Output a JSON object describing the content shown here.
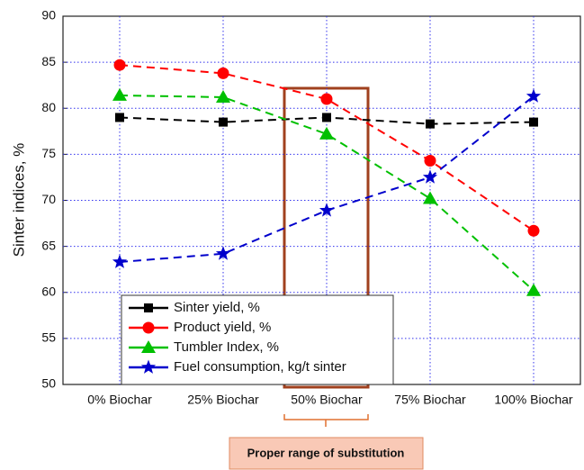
{
  "chart_data": {
    "type": "line",
    "y_label": "Sinter indices, %",
    "categories": [
      "0% Biochar",
      "25% Biochar",
      "50% Biochar",
      "75% Biochar",
      "100% Biochar"
    ],
    "series": [
      {
        "name": "Sinter yield, %",
        "color": "#000000",
        "marker": "square",
        "values": [
          79.0,
          78.5,
          79.0,
          78.3,
          78.5
        ]
      },
      {
        "name": "Product yield, %",
        "color": "#ff0000",
        "marker": "circle",
        "values": [
          84.7,
          83.8,
          81.0,
          74.3,
          66.7
        ]
      },
      {
        "name": "Tumbler Index, %",
        "color": "#00c000",
        "marker": "triangle",
        "values": [
          81.4,
          81.2,
          77.2,
          70.2,
          60.2
        ]
      },
      {
        "name": "Fuel consumption, kg/t sinter",
        "color": "#0000cc",
        "marker": "star",
        "values": [
          63.3,
          64.2,
          68.9,
          72.5,
          81.3
        ]
      }
    ],
    "ylim": [
      50,
      90
    ],
    "yticks": [
      50,
      55,
      60,
      65,
      70,
      75,
      80,
      85,
      90
    ],
    "grid": true,
    "legend": "lower left",
    "annotation": "Proper range of substitution"
  }
}
